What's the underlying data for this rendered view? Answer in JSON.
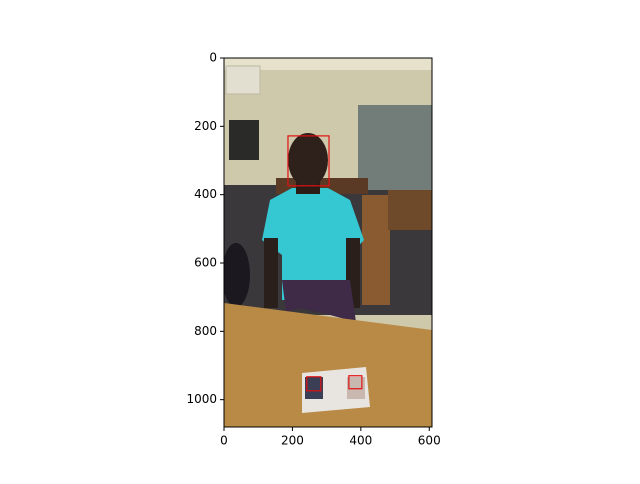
{
  "chart_data": {
    "type": "image",
    "xlim": [
      0,
      608
    ],
    "ylim": [
      1080,
      0
    ],
    "xticks": [
      0,
      200,
      400,
      600
    ],
    "yticks": [
      0,
      200,
      400,
      600,
      800,
      1000
    ],
    "boxes": [
      [
        187,
        228,
        307,
        374
      ],
      [
        242,
        933,
        283,
        974
      ],
      [
        365,
        930,
        403,
        968
      ]
    ],
    "box_color": "#e01010"
  }
}
